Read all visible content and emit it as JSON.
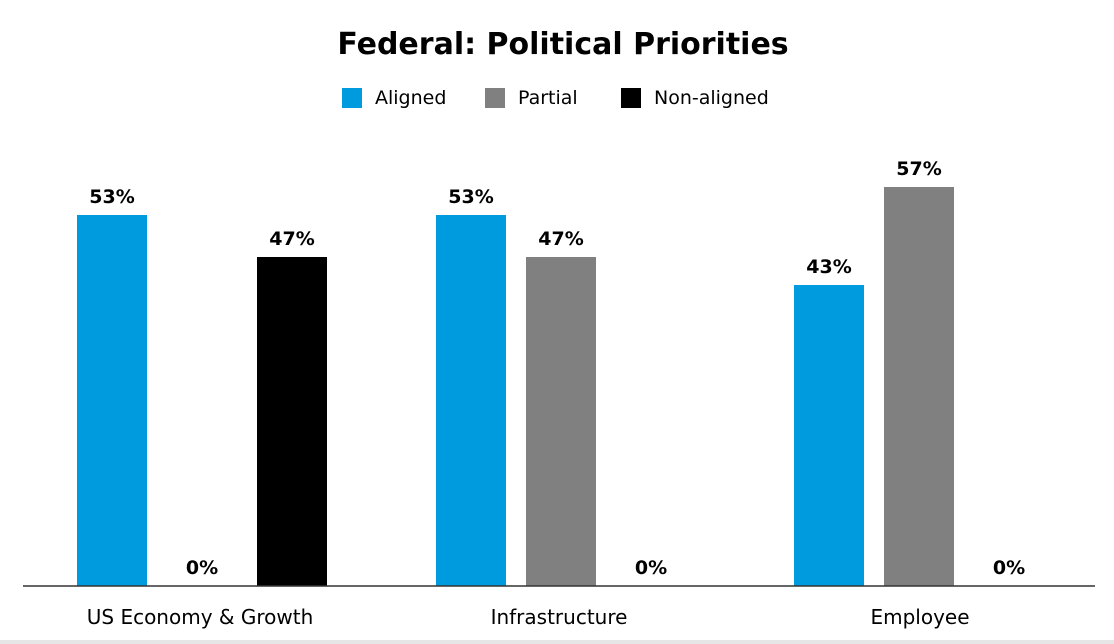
{
  "colors": {
    "aligned": "#009ADE",
    "partial": "#808080",
    "non_aligned": "#000000",
    "axis": "#333333"
  },
  "chart_data": {
    "type": "bar",
    "title": "Federal: Political Priorities",
    "xlabel": "",
    "ylabel": "",
    "ylim": [
      0,
      60
    ],
    "grid": false,
    "legend_position": "top-center",
    "categories": [
      "US Economy & Growth",
      "Infrastructure",
      "Employee"
    ],
    "series": [
      {
        "name": "Aligned",
        "color_key": "aligned",
        "values": [
          53,
          53,
          43
        ],
        "labels": [
          "53%",
          "53%",
          "43%"
        ]
      },
      {
        "name": "Partial",
        "color_key": "partial",
        "values": [
          0,
          47,
          57
        ],
        "labels": [
          "0%",
          "47%",
          "57%"
        ]
      },
      {
        "name": "Non-aligned",
        "color_key": "non_aligned",
        "values": [
          47,
          0,
          0
        ],
        "labels": [
          "47%",
          "0%",
          "0%"
        ]
      }
    ]
  }
}
